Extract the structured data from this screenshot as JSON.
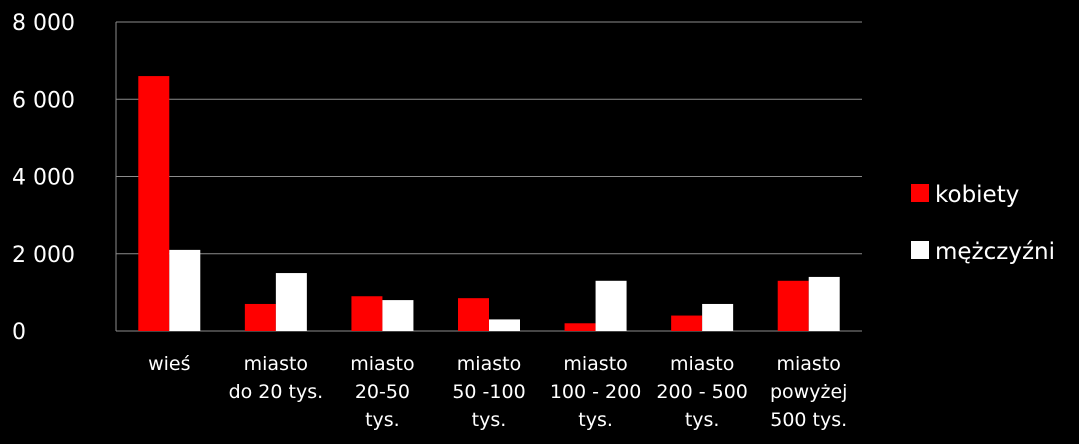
{
  "chart_data": {
    "type": "bar",
    "categories": [
      [
        "wieś"
      ],
      [
        "miasto",
        "do 20 tys."
      ],
      [
        "miasto",
        "20-50",
        "tys."
      ],
      [
        "miasto",
        "50 -100",
        "tys."
      ],
      [
        "miasto",
        "100 - 200",
        "tys."
      ],
      [
        "miasto",
        "200 - 500",
        "tys."
      ],
      [
        "miasto",
        "powyżej",
        "500 tys."
      ]
    ],
    "series": [
      {
        "name": "kobiety",
        "color": "#ff0000",
        "values": [
          6600,
          700,
          900,
          850,
          200,
          400,
          1300
        ]
      },
      {
        "name": "mężczyźni",
        "color": "#ffffff",
        "values": [
          2100,
          1500,
          800,
          300,
          1300,
          700,
          1400
        ]
      }
    ],
    "ylim": [
      0,
      8000
    ],
    "yticks": [
      0,
      2000,
      4000,
      6000,
      8000
    ],
    "ytick_labels": [
      "0",
      "2 000",
      "4 000",
      "6 000",
      "8 000"
    ],
    "grid": true,
    "legend": "right"
  }
}
